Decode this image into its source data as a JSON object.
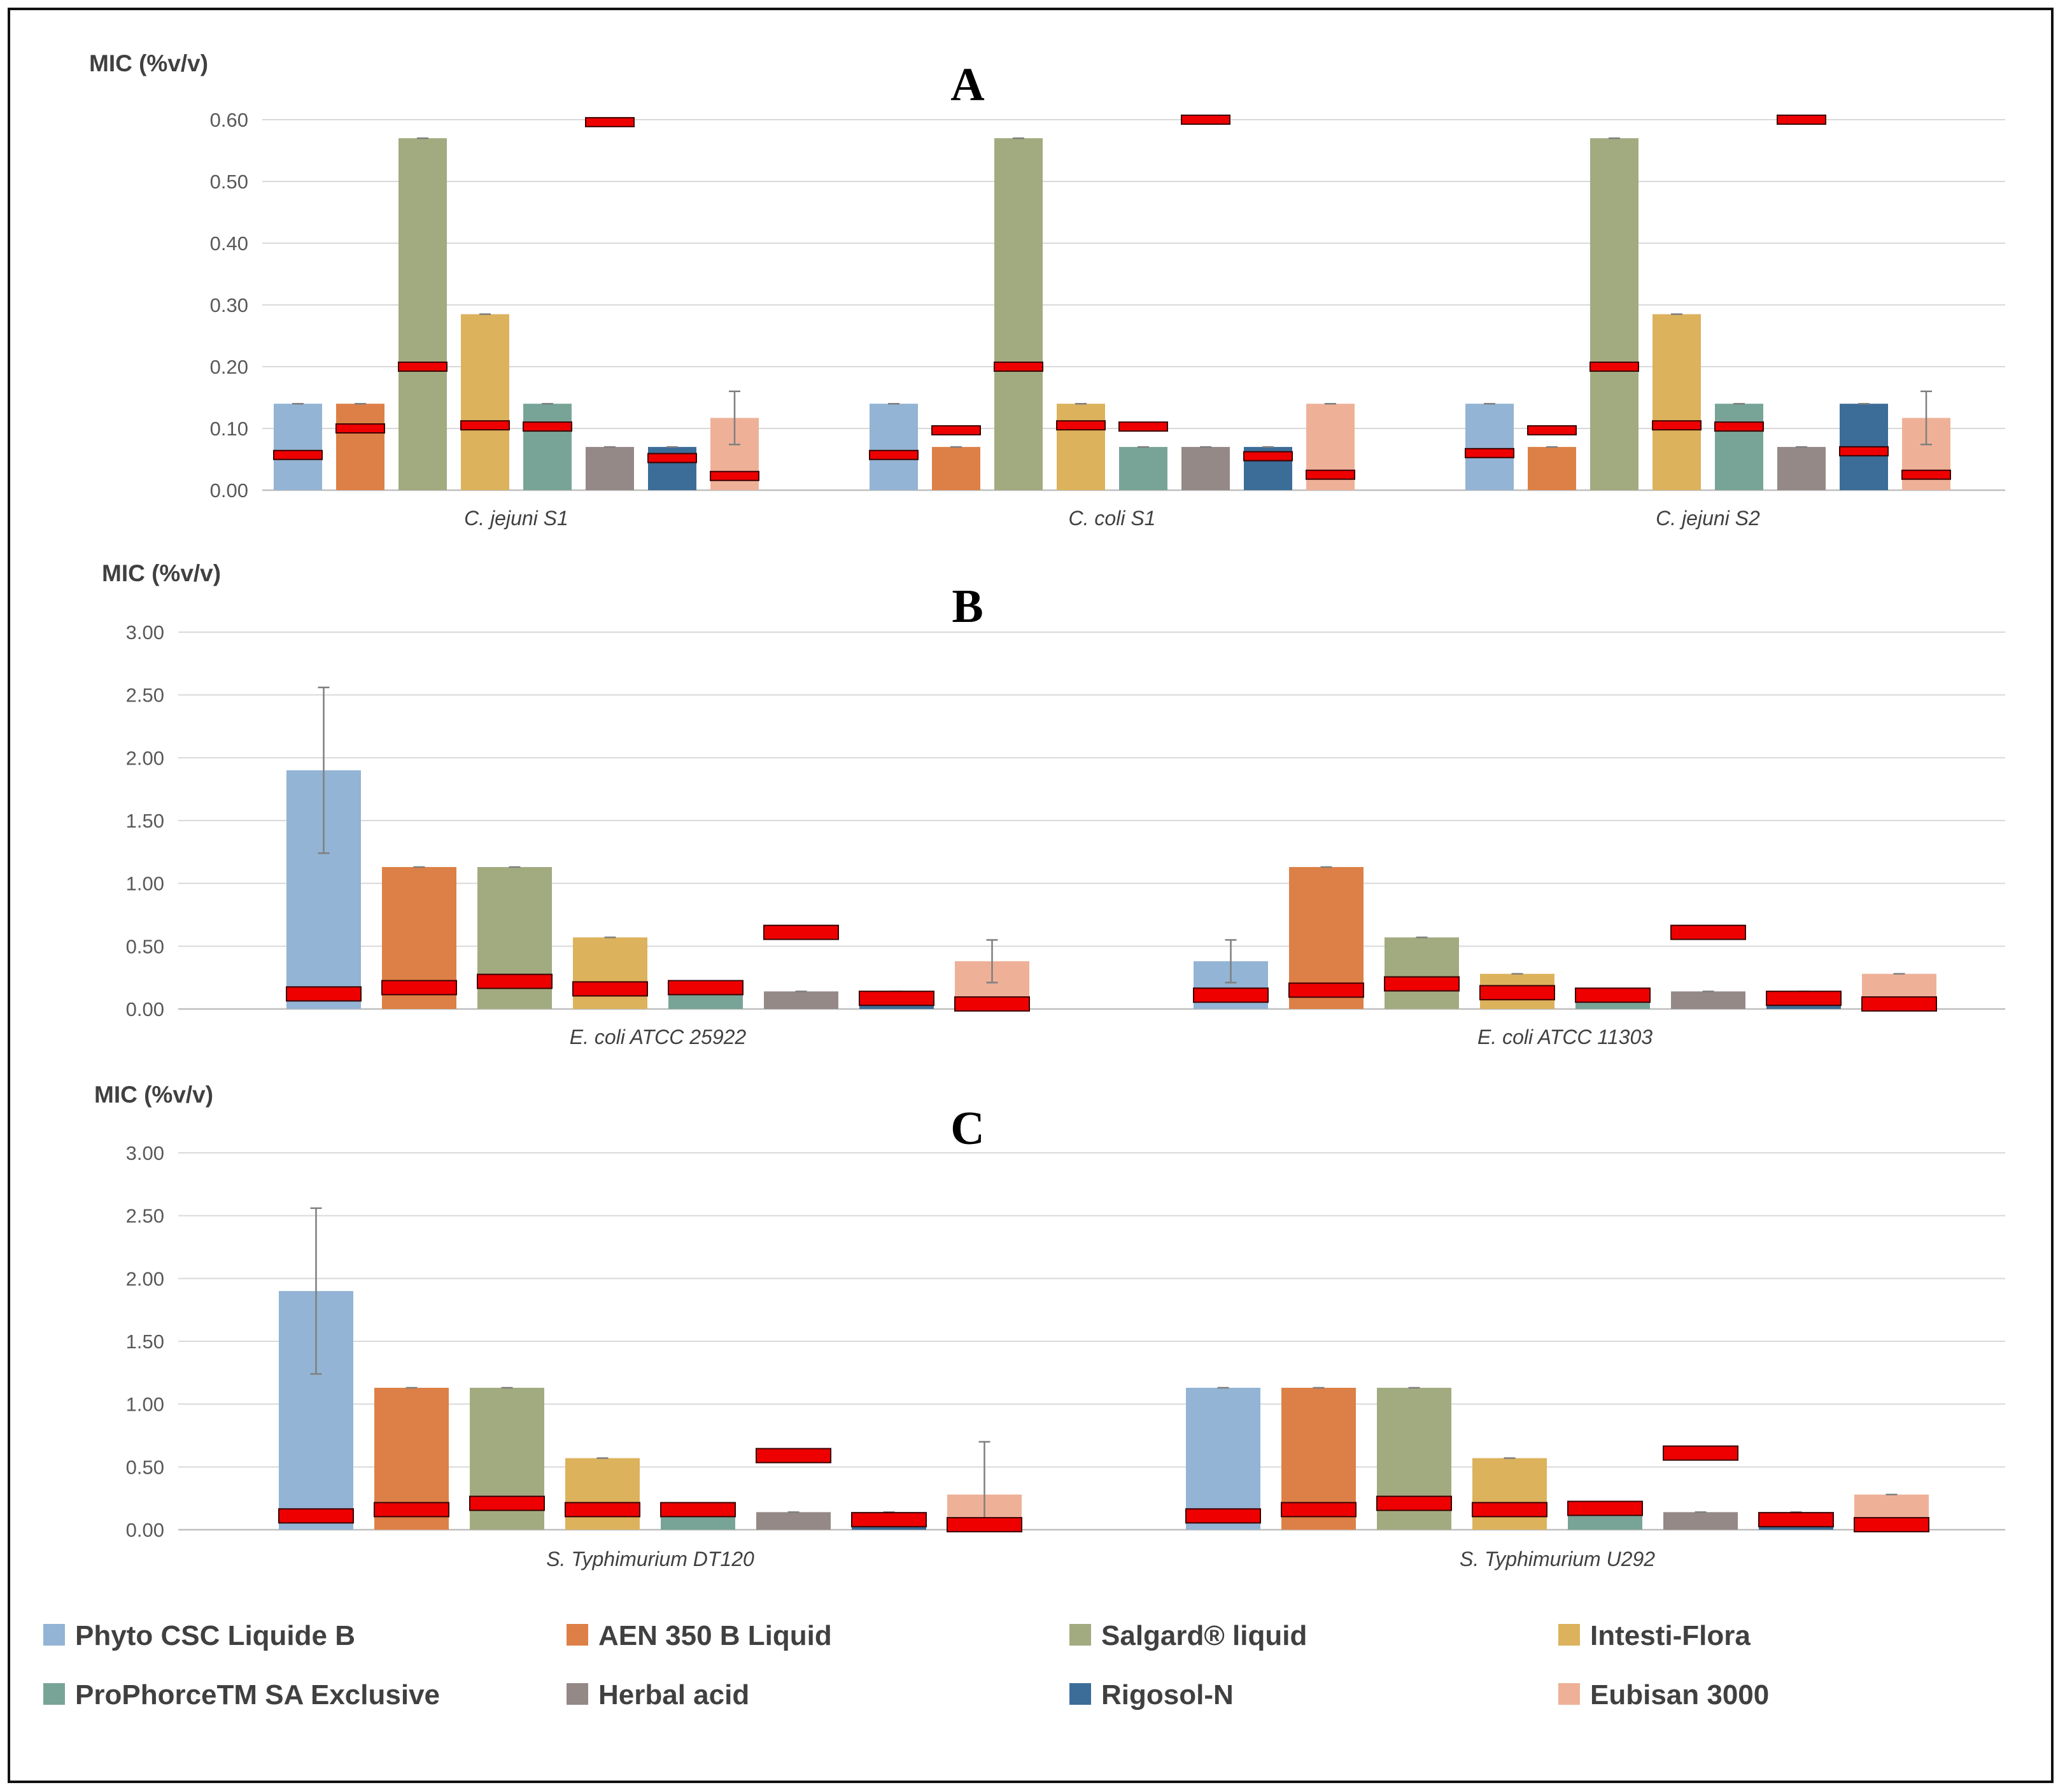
{
  "legend": [
    {
      "label": "Phyto CSC Liquide B",
      "color": "#93b4d4"
    },
    {
      "label": "AEN 350 B Liquid",
      "color": "#dd8047"
    },
    {
      "label": "Salgard® liquid",
      "color": "#a2ab80"
    },
    {
      "label": "Intesti-Flora",
      "color": "#dcb25c"
    },
    {
      "label": "ProPhorceTM SA Exclusive",
      "color": "#78a497"
    },
    {
      "label": "Herbal acid",
      "color": "#948987"
    },
    {
      "label": "Rigosol-N",
      "color": "#3b6d98"
    },
    {
      "label": "Eubisan 3000",
      "color": "#eeb198"
    }
  ],
  "marker_color": "#ee0000",
  "chart_data": [
    {
      "type": "bar",
      "panel": "A",
      "ylabel": "MIC (%v/v)",
      "ylim": [
        0,
        0.6
      ],
      "yticks": [
        "0.00",
        "0.10",
        "0.20",
        "0.30",
        "0.40",
        "0.50",
        "0.60"
      ],
      "categories": [
        "C. jejuni S1",
        "C. coli S1",
        "C. jejuni S2"
      ],
      "series": [
        {
          "name": "Phyto CSC Liquide B",
          "values": [
            0.14,
            0.14,
            0.14
          ],
          "err": [
            0.0,
            0.0,
            0.0
          ],
          "marker": [
            0.057,
            0.057,
            0.06
          ]
        },
        {
          "name": "AEN 350 B Liquid",
          "values": [
            0.14,
            0.07,
            0.07
          ],
          "err": [
            0.0,
            0.0,
            0.0
          ],
          "marker": [
            0.1,
            0.097,
            0.097
          ]
        },
        {
          "name": "Salgard® liquid",
          "values": [
            0.57,
            0.57,
            0.57
          ],
          "err": [
            0.0,
            0.0,
            0.0
          ],
          "marker": [
            0.2,
            0.2,
            0.2
          ]
        },
        {
          "name": "Intesti-Flora",
          "values": [
            0.285,
            0.14,
            0.285
          ],
          "err": [
            0.0,
            0.0,
            0.0
          ],
          "marker": [
            0.105,
            0.105,
            0.105
          ]
        },
        {
          "name": "ProPhorceTM SA Exclusive",
          "values": [
            0.14,
            0.07,
            0.14
          ],
          "err": [
            0.0,
            0.0,
            0.0
          ],
          "marker": [
            0.103,
            0.103,
            0.103
          ]
        },
        {
          "name": "Herbal acid",
          "values": [
            0.07,
            0.07,
            0.07
          ],
          "err": [
            0.0,
            0.0,
            0.0
          ],
          "marker": [
            0.596,
            0.6,
            0.6
          ]
        },
        {
          "name": "Rigosol-N",
          "values": [
            0.07,
            0.07,
            0.14
          ],
          "err": [
            0.0,
            0.0,
            0.0
          ],
          "marker": [
            0.052,
            0.055,
            0.063
          ]
        },
        {
          "name": "Eubisan 3000",
          "values": [
            0.117,
            0.14,
            0.117
          ],
          "err": [
            0.043,
            0.0,
            0.043
          ],
          "marker": [
            0.023,
            0.025,
            0.025
          ]
        }
      ]
    },
    {
      "type": "bar",
      "panel": "B",
      "ylabel": "MIC (%v/v)",
      "ylim": [
        0,
        3.0
      ],
      "yticks": [
        "0.00",
        "0.50",
        "1.00",
        "1.50",
        "2.00",
        "2.50",
        "3.00"
      ],
      "categories": [
        "E. coli ATCC 25922",
        "E. coli ATCC 11303"
      ],
      "series": [
        {
          "name": "Phyto CSC Liquide B",
          "values": [
            1.9,
            0.38
          ],
          "err": [
            0.66,
            0.17
          ],
          "marker": [
            0.12,
            0.11
          ]
        },
        {
          "name": "AEN 350 B Liquid",
          "values": [
            1.13,
            1.13
          ],
          "err": [
            0.0,
            0.0
          ],
          "marker": [
            0.17,
            0.15
          ]
        },
        {
          "name": "Salgard® liquid",
          "values": [
            1.13,
            0.57
          ],
          "err": [
            0.0,
            0.0
          ],
          "marker": [
            0.22,
            0.2
          ]
        },
        {
          "name": "Intesti-Flora",
          "values": [
            0.57,
            0.28
          ],
          "err": [
            0.0,
            0.0
          ],
          "marker": [
            0.16,
            0.13
          ]
        },
        {
          "name": "ProPhorceTM SA Exclusive",
          "values": [
            0.14,
            0.07
          ],
          "err": [
            0.0,
            0.0
          ],
          "marker": [
            0.17,
            0.11
          ]
        },
        {
          "name": "Herbal acid",
          "values": [
            0.14,
            0.14
          ],
          "err": [
            0.0,
            0.0
          ],
          "marker": [
            0.61,
            0.61
          ]
        },
        {
          "name": "Rigosol-N",
          "values": [
            0.14,
            0.14
          ],
          "err": [
            0.0,
            0.0
          ],
          "marker": [
            0.085,
            0.085
          ]
        },
        {
          "name": "Eubisan 3000",
          "values": [
            0.38,
            0.28
          ],
          "err": [
            0.17,
            0.0
          ],
          "marker": [
            0.04,
            0.04
          ]
        }
      ]
    },
    {
      "type": "bar",
      "panel": "C",
      "ylabel": "MIC (%v/v)",
      "ylim": [
        0,
        3.0
      ],
      "yticks": [
        "0.00",
        "0.50",
        "1.00",
        "1.50",
        "2.00",
        "2.50",
        "3.00"
      ],
      "categories": [
        "S. Typhimurium DT120",
        "S. Typhimurium U292"
      ],
      "series": [
        {
          "name": "Phyto CSC Liquide B",
          "values": [
            1.9,
            1.13
          ],
          "err": [
            0.66,
            0.0
          ],
          "marker": [
            0.11,
            0.11
          ]
        },
        {
          "name": "AEN 350 B Liquid",
          "values": [
            1.13,
            1.13
          ],
          "err": [
            0.0,
            0.0
          ],
          "marker": [
            0.16,
            0.16
          ]
        },
        {
          "name": "Salgard® liquid",
          "values": [
            1.13,
            1.13
          ],
          "err": [
            0.0,
            0.0
          ],
          "marker": [
            0.21,
            0.21
          ]
        },
        {
          "name": "Intesti-Flora",
          "values": [
            0.57,
            0.57
          ],
          "err": [
            0.0,
            0.0
          ],
          "marker": [
            0.16,
            0.16
          ]
        },
        {
          "name": "ProPhorceTM SA Exclusive",
          "values": [
            0.14,
            0.21
          ],
          "err": [
            0.0,
            0.0
          ],
          "marker": [
            0.16,
            0.17
          ]
        },
        {
          "name": "Herbal acid",
          "values": [
            0.14,
            0.14
          ],
          "err": [
            0.0,
            0.0
          ],
          "marker": [
            0.59,
            0.61
          ]
        },
        {
          "name": "Rigosol-N",
          "values": [
            0.14,
            0.14
          ],
          "err": [
            0.0,
            0.0
          ],
          "marker": [
            0.08,
            0.08
          ]
        },
        {
          "name": "Eubisan 3000",
          "values": [
            0.28,
            0.28
          ],
          "err": [
            0.42,
            0.0
          ],
          "marker": [
            0.04,
            0.04
          ]
        }
      ]
    }
  ]
}
